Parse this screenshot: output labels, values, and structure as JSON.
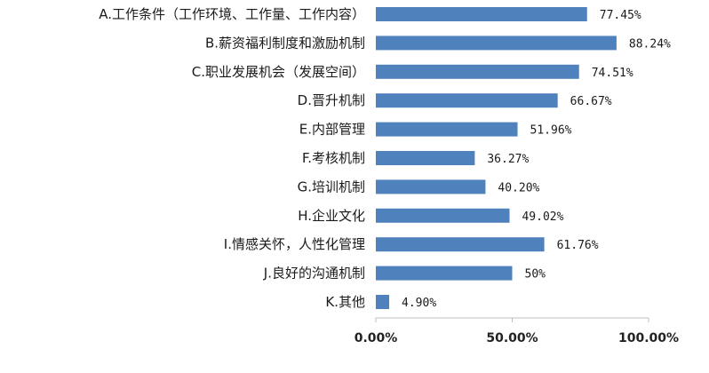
{
  "chart_data": {
    "type": "bar",
    "orientation": "horizontal",
    "categories": [
      "A.工作条件（工作环境、工作量、工作内容）",
      "B.薪资福利制度和激励机制",
      "C.职业发展机会（发展空间）",
      "D.晋升机制",
      "E.内部管理",
      "F.考核机制",
      "G.培训机制",
      "H.企业文化",
      "I.情感关怀，人性化管理",
      "J.良好的沟通机制",
      "K.其他"
    ],
    "values": [
      77.45,
      88.24,
      74.51,
      66.67,
      51.96,
      36.27,
      40.2,
      49.02,
      61.76,
      50,
      4.9
    ],
    "data_labels": [
      "77.45%",
      "88.24%",
      "74.51%",
      "66.67%",
      "51.96%",
      "36.27%",
      "40.20%",
      "49.02%",
      "61.76%",
      "50%",
      "4.90%"
    ],
    "xlim": [
      0,
      100
    ],
    "x_ticks": [
      0,
      50,
      100
    ],
    "x_tick_labels": [
      "0.00%",
      "50.00%",
      "100.00%"
    ],
    "title": "",
    "xlabel": "",
    "ylabel": "",
    "grid": false,
    "legend": "none",
    "colors": {
      "bar": "#4f81bd",
      "axis": "#bfbfbf",
      "text": "#1a1a1a"
    }
  }
}
